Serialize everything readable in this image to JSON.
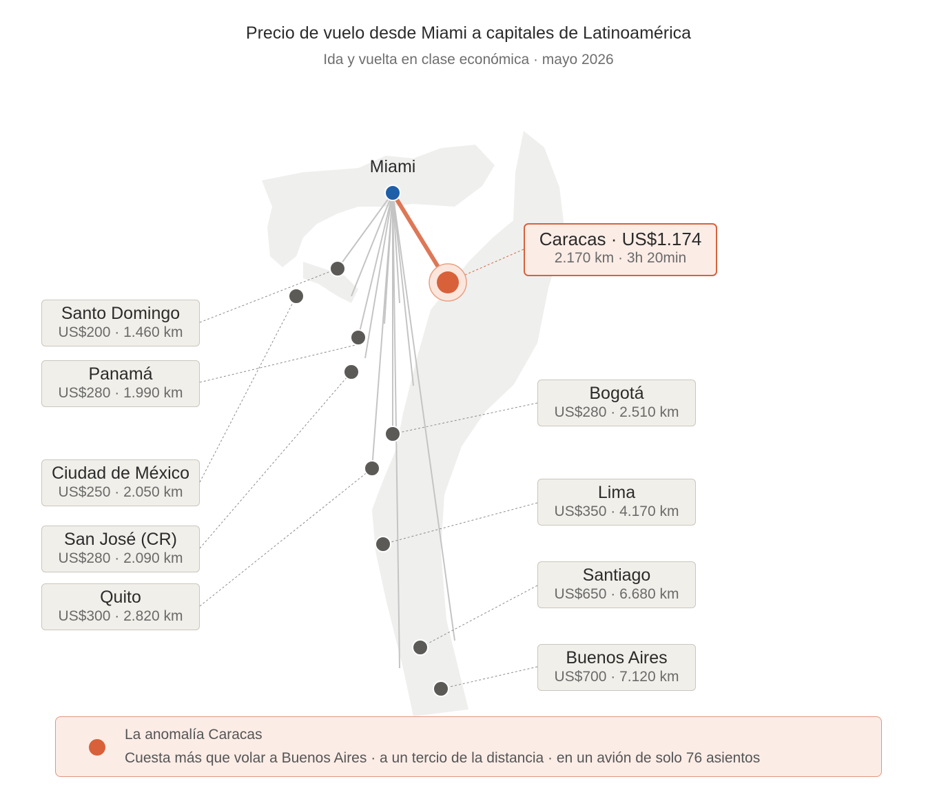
{
  "title": "Precio de vuelo desde Miami a capitales de Latinoamérica",
  "subtitle": "Ida y vuelta en clase económica · mayo 2026",
  "colors": {
    "highlight": "#d8613a",
    "origin": "#1f5fa8",
    "city": "#5c5a57",
    "land": "#efefee"
  },
  "origin": {
    "name": "Miami"
  },
  "highlight": {
    "name": "Caracas · US$1.174",
    "detail": "2.170 km · 3h 20min"
  },
  "cities": [
    {
      "name": "Santo Domingo",
      "detail": "US$200 · 1.460 km"
    },
    {
      "name": "Panamá",
      "detail": "US$280 · 1.990 km"
    },
    {
      "name": "Ciudad de México",
      "detail": "US$250 · 2.050 km"
    },
    {
      "name": "San José (CR)",
      "detail": "US$280 · 2.090 km"
    },
    {
      "name": "Quito",
      "detail": "US$300 · 2.820 km"
    },
    {
      "name": "Bogotá",
      "detail": "US$280 · 2.510 km"
    },
    {
      "name": "Lima",
      "detail": "US$350 · 4.170 km"
    },
    {
      "name": "Santiago",
      "detail": "US$650 · 6.680 km"
    },
    {
      "name": "Buenos Aires",
      "detail": "US$700 · 7.120 km"
    }
  ],
  "note": {
    "heading": "La anomalía Caracas",
    "body": "Cuesta más que volar a Buenos Aires · a un tercio de la distancia · en un avión de solo 76 asientos"
  }
}
